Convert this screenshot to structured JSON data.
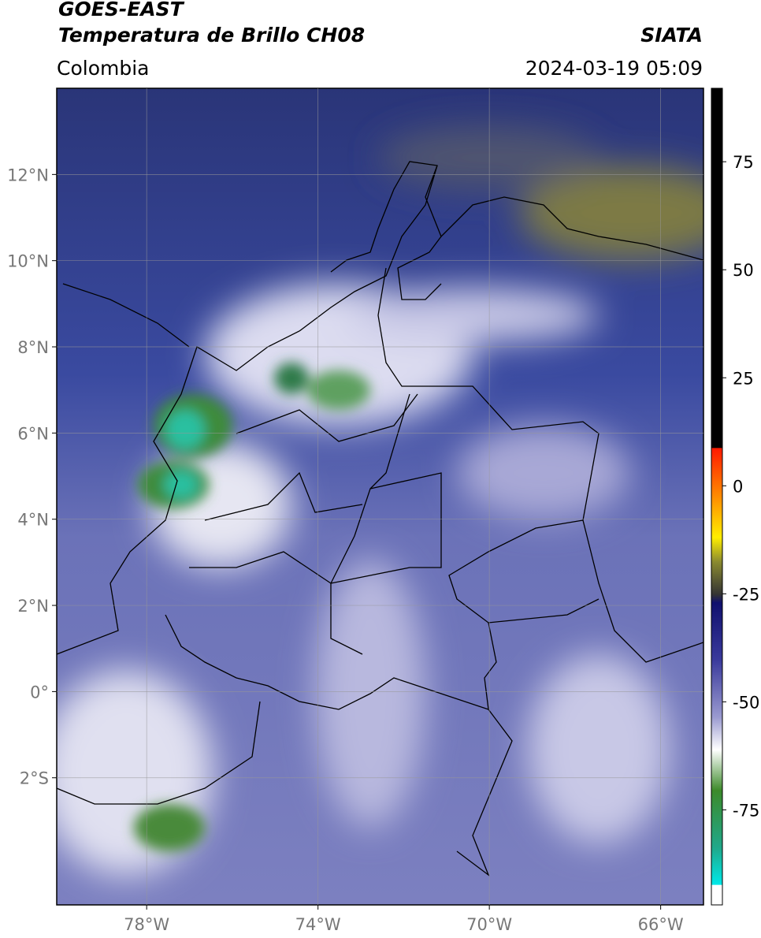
{
  "header": {
    "satellite": "GOES-EAST",
    "product": "Temperatura de Brillo CH08",
    "source": "SIATA",
    "region": "Colombia",
    "datetime": "2024-03-19 05:09"
  },
  "map": {
    "lonlim": [
      -80.1,
      -65
    ],
    "latlim": [
      -4.95,
      14
    ],
    "lon_ticks": [
      {
        "value": -78,
        "label": "78°W"
      },
      {
        "value": -74,
        "label": "74°W"
      },
      {
        "value": -70,
        "label": "70°W"
      },
      {
        "value": -66,
        "label": "66°W"
      }
    ],
    "lat_ticks": [
      {
        "value": 12,
        "label": "12°N"
      },
      {
        "value": 10,
        "label": "10°N"
      },
      {
        "value": 8,
        "label": "8°N"
      },
      {
        "value": 6,
        "label": "6°N"
      },
      {
        "value": 4,
        "label": "4°N"
      },
      {
        "value": 2,
        "label": "2°N"
      },
      {
        "value": 0,
        "label": "0°"
      },
      {
        "value": -2,
        "label": "2°S"
      }
    ],
    "grid": true
  },
  "colorbar": {
    "lim": [
      -97,
      92
    ],
    "ticks": [
      75,
      50,
      25,
      0,
      -25,
      -50,
      -75
    ]
  }
}
